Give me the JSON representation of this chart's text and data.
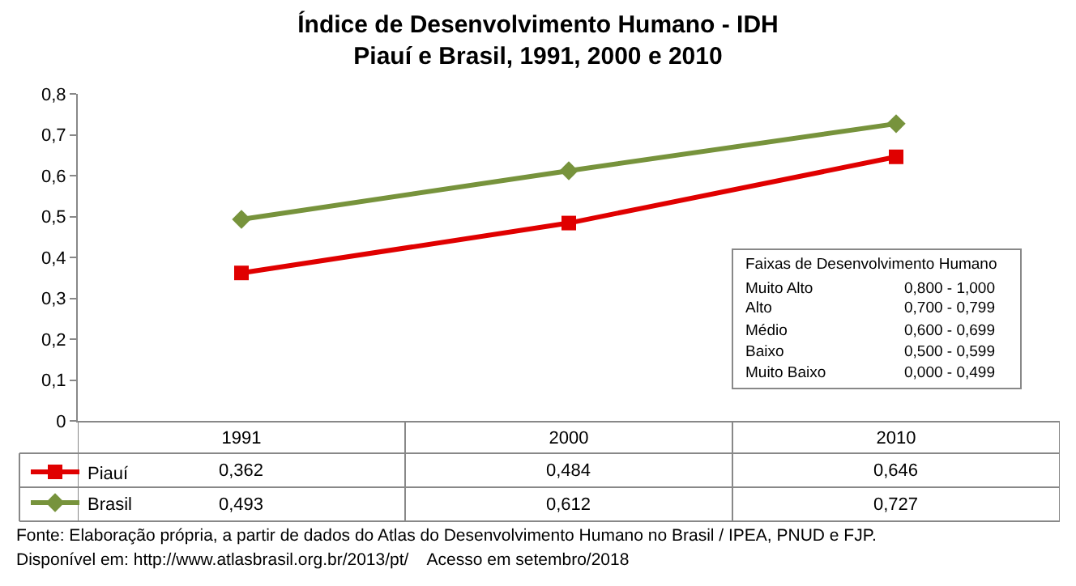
{
  "chart_data": {
    "type": "line",
    "title": "Índice de Desenvolvimento Humano - IDH\nPiauí e Brasil, 1991, 2000 e 2010",
    "categories": [
      "1991",
      "2000",
      "2010"
    ],
    "series": [
      {
        "name": "Piauí",
        "color": "#e00000",
        "marker": "square",
        "values": [
          0.362,
          0.484,
          0.646
        ],
        "value_labels": [
          "0,362",
          "0,484",
          "0,646"
        ]
      },
      {
        "name": "Brasil",
        "color": "#77933c",
        "marker": "diamond",
        "values": [
          0.493,
          0.612,
          0.727
        ],
        "value_labels": [
          "0,493",
          "0,612",
          "0,727"
        ]
      }
    ],
    "ylim": [
      0,
      0.8
    ],
    "yticks": [
      0,
      {
        "value": 0.1,
        "label": "0,1"
      },
      {
        "value": 0.2,
        "label": "0,2"
      },
      {
        "value": 0.3,
        "label": "0,3"
      },
      {
        "value": 0.4,
        "label": "0,4"
      },
      {
        "value": 0.5,
        "label": "0,5"
      },
      {
        "value": 0.6,
        "label": "0,6"
      },
      {
        "value": 0.7,
        "label": "0,7"
      },
      {
        "value": 0.8,
        "label": "0,8"
      }
    ],
    "grid": false,
    "legend": "bottom left",
    "annotations": [
      "Faixas de Desenvolvimento Humano",
      "Muito Alto",
      "Alto",
      "Médio",
      "Baixo",
      "Muito Baixo",
      "0,800 - 1,000",
      "0,700 - 0,799",
      "0,600 - 0,699",
      "0,500 - 0,599",
      "0,000 - 0,499",
      "Fonte: Elaboração própria, a partir de dados do Atlas do Desenvolvimento Humano no Brasil / IPEA, PNUD e FJP.",
      "Disponível em: http://www.atlasbrasil.org.br/2013/pt/    Acesso em setembro/2018"
    ]
  }
}
